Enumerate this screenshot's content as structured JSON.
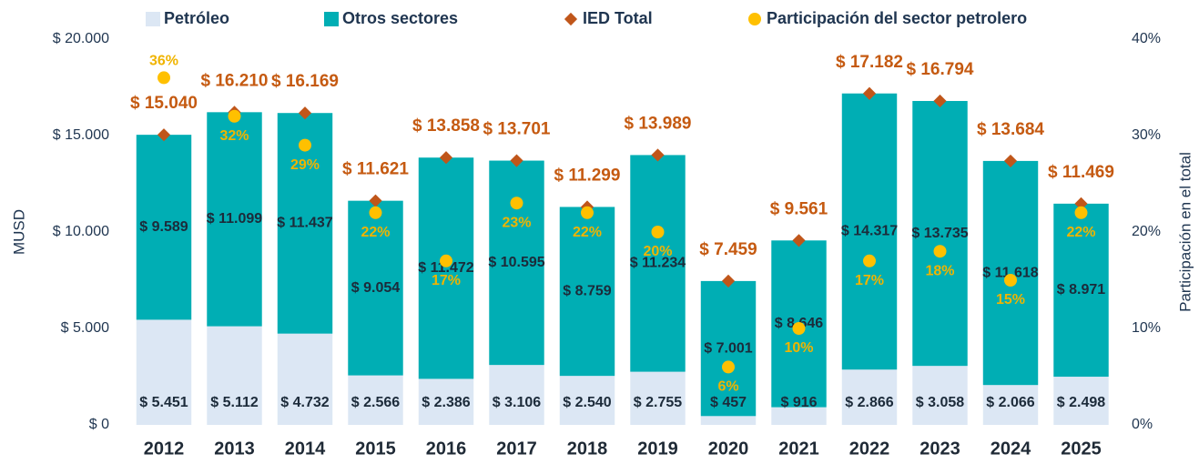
{
  "chart_data": {
    "type": "bar",
    "stacked": true,
    "categories": [
      "2012",
      "2013",
      "2014",
      "2015",
      "2016",
      "2017",
      "2018",
      "2019",
      "2020",
      "2021",
      "2022",
      "2023",
      "2024",
      "2025"
    ],
    "series": [
      {
        "name": "Petróleo",
        "type": "bar",
        "color": "#dce7f4",
        "values": [
          5451,
          5112,
          4732,
          2566,
          2386,
          3106,
          2540,
          2755,
          457,
          916,
          2866,
          3058,
          2066,
          2498
        ],
        "value_labels": [
          "$ 5.451",
          "$ 5.112",
          "$ 4.732",
          "$ 2.566",
          "$ 2.386",
          "$ 3.106",
          "$ 2.540",
          "$ 2.755",
          "$ 457",
          "$ 916",
          "$ 2.866",
          "$ 3.058",
          "$ 2.066",
          "$ 2.498"
        ]
      },
      {
        "name": "Otros sectores",
        "type": "bar",
        "color": "#00aeb4",
        "values": [
          9589,
          11099,
          11437,
          9054,
          11472,
          10595,
          8759,
          11234,
          7001,
          8646,
          14317,
          13735,
          11618,
          8971
        ],
        "value_labels": [
          "$ 9.589",
          "$ 11.099",
          "$ 11.437",
          "$ 9.054",
          "$ 11.472",
          "$ 10.595",
          "$ 8.759",
          "$ 11.234",
          "$ 7.001",
          "$ 8.646",
          "$ 14.317",
          "$ 13.735",
          "$ 11.618",
          "$ 8.971"
        ]
      },
      {
        "name": "IED Total",
        "type": "marker",
        "marker": "diamond",
        "color": "#c0561a",
        "values": [
          15040,
          16210,
          16169,
          11621,
          13858,
          13701,
          11299,
          13989,
          7459,
          9561,
          17182,
          16794,
          13684,
          11469
        ],
        "value_labels": [
          "$ 15.040",
          "$ 16.210",
          "$ 16.169",
          "$ 11.621",
          "$ 13.858",
          "$ 13.701",
          "$ 11.299",
          "$ 13.989",
          "$ 7.459",
          "$ 9.561",
          "$ 17.182",
          "$ 16.794",
          "$ 13.684",
          "$ 11.469"
        ]
      },
      {
        "name": "Participación del sector petrolero",
        "type": "marker",
        "marker": "circle",
        "color": "#ffc000",
        "axis": "y2",
        "values": [
          36,
          32,
          29,
          22,
          17,
          23,
          22,
          20,
          6,
          10,
          17,
          18,
          15,
          22
        ],
        "value_labels": [
          "36%",
          "32%",
          "29%",
          "22%",
          "17%",
          "23%",
          "22%",
          "20%",
          "6%",
          "10%",
          "17%",
          "18%",
          "15%",
          "22%"
        ]
      }
    ],
    "ylabel": "MUSD",
    "y2label": "Participación en el total",
    "ylim": [
      0,
      20000
    ],
    "yticks": [
      {
        "value": 0,
        "label": "$ 0"
      },
      {
        "value": 5000,
        "label": "$ 5.000"
      },
      {
        "value": 10000,
        "label": "$ 10.000"
      },
      {
        "value": 15000,
        "label": "$ 15.000"
      },
      {
        "value": 20000,
        "label": "$ 20.000"
      }
    ],
    "y2lim": [
      0,
      40
    ],
    "y2ticks": [
      {
        "value": 0,
        "label": "0%"
      },
      {
        "value": 10,
        "label": "10%"
      },
      {
        "value": 20,
        "label": "20%"
      },
      {
        "value": 30,
        "label": "30%"
      },
      {
        "value": 40,
        "label": "40%"
      }
    ],
    "legend": "top",
    "grid": false
  }
}
